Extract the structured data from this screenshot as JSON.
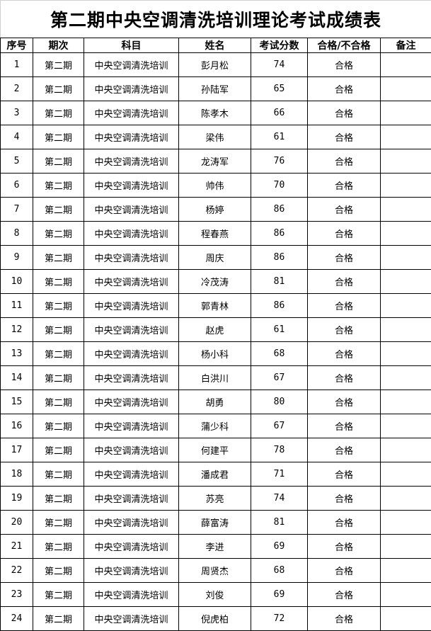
{
  "title": "第二期中央空调清洗培训理论考试成绩表",
  "columns": [
    "序号",
    "期次",
    "科目",
    "姓名",
    "考试分数",
    "合格/不合格",
    "备注"
  ],
  "rows": [
    [
      "1",
      "第二期",
      "中央空调清洗培训",
      "彭月松",
      "74",
      "合格",
      ""
    ],
    [
      "2",
      "第二期",
      "中央空调清洗培训",
      "孙陆军",
      "65",
      "合格",
      ""
    ],
    [
      "3",
      "第二期",
      "中央空调清洗培训",
      "陈孝木",
      "66",
      "合格",
      ""
    ],
    [
      "4",
      "第二期",
      "中央空调清洗培训",
      "梁伟",
      "61",
      "合格",
      ""
    ],
    [
      "5",
      "第二期",
      "中央空调清洗培训",
      "龙涛军",
      "76",
      "合格",
      ""
    ],
    [
      "6",
      "第二期",
      "中央空调清洗培训",
      "帅伟",
      "70",
      "合格",
      ""
    ],
    [
      "7",
      "第二期",
      "中央空调清洗培训",
      "杨婷",
      "86",
      "合格",
      ""
    ],
    [
      "8",
      "第二期",
      "中央空调清洗培训",
      "程春燕",
      "86",
      "合格",
      ""
    ],
    [
      "9",
      "第二期",
      "中央空调清洗培训",
      "周庆",
      "86",
      "合格",
      ""
    ],
    [
      "10",
      "第二期",
      "中央空调清洗培训",
      "冷茂涛",
      "81",
      "合格",
      ""
    ],
    [
      "11",
      "第二期",
      "中央空调清洗培训",
      "郭青林",
      "86",
      "合格",
      ""
    ],
    [
      "12",
      "第二期",
      "中央空调清洗培训",
      "赵虎",
      "61",
      "合格",
      ""
    ],
    [
      "13",
      "第二期",
      "中央空调清洗培训",
      "杨小科",
      "68",
      "合格",
      ""
    ],
    [
      "14",
      "第二期",
      "中央空调清洗培训",
      "白洪川",
      "67",
      "合格",
      ""
    ],
    [
      "15",
      "第二期",
      "中央空调清洗培训",
      "胡勇",
      "80",
      "合格",
      ""
    ],
    [
      "16",
      "第二期",
      "中央空调清洗培训",
      "蒲少科",
      "67",
      "合格",
      ""
    ],
    [
      "17",
      "第二期",
      "中央空调清洗培训",
      "何建平",
      "78",
      "合格",
      ""
    ],
    [
      "18",
      "第二期",
      "中央空调清洗培训",
      "潘成君",
      "71",
      "合格",
      ""
    ],
    [
      "19",
      "第二期",
      "中央空调清洗培训",
      "苏亮",
      "74",
      "合格",
      ""
    ],
    [
      "20",
      "第二期",
      "中央空调清洗培训",
      "薛富涛",
      "81",
      "合格",
      ""
    ],
    [
      "21",
      "第二期",
      "中央空调清洗培训",
      "李进",
      "69",
      "合格",
      ""
    ],
    [
      "22",
      "第二期",
      "中央空调清洗培训",
      "周贤杰",
      "68",
      "合格",
      ""
    ],
    [
      "23",
      "第二期",
      "中央空调清洗培训",
      "刘俊",
      "69",
      "合格",
      ""
    ],
    [
      "24",
      "第二期",
      "中央空调清洗培训",
      "倪虎柏",
      "72",
      "合格",
      ""
    ]
  ]
}
